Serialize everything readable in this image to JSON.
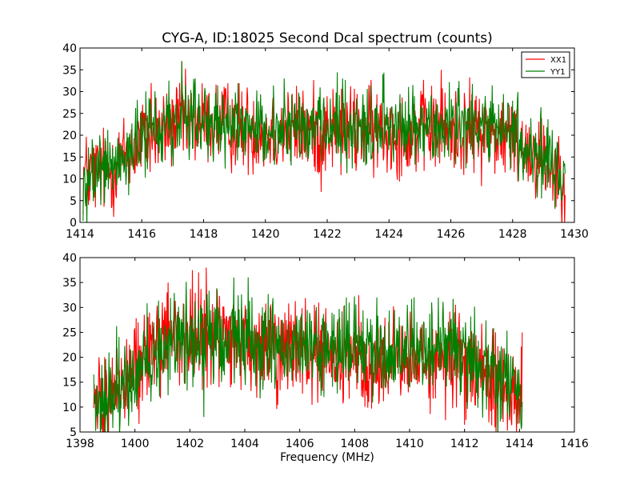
{
  "chart_data": [
    {
      "type": "line",
      "title": "CYG-A, ID:18025 Second Dcal spectrum (counts)",
      "xlabel": "",
      "ylabel": "",
      "xlim": [
        1414,
        1430
      ],
      "ylim": [
        0,
        40
      ],
      "xticks": [
        "1414",
        "1416",
        "1418",
        "1420",
        "1422",
        "1424",
        "1426",
        "1428",
        "1430"
      ],
      "yticks": [
        "0",
        "5",
        "10",
        "15",
        "20",
        "25",
        "30",
        "35",
        "40"
      ],
      "grid": false,
      "legend": {
        "placement": "top-right",
        "entries": [
          "XX1",
          "YY1"
        ]
      },
      "series": [
        {
          "name": "XX1",
          "color": "#ff0000",
          "x_start": 1414.1,
          "x_end": 1429.7,
          "envelope": [
            [
              1414.1,
              11
            ],
            [
              1415.0,
              12
            ],
            [
              1416.0,
              19
            ],
            [
              1417.0,
              22
            ],
            [
              1418.0,
              23
            ],
            [
              1419.0,
              22
            ],
            [
              1420.0,
              21
            ],
            [
              1421.0,
              21
            ],
            [
              1422.0,
              21
            ],
            [
              1423.0,
              21
            ],
            [
              1424.0,
              21
            ],
            [
              1425.0,
              21
            ],
            [
              1426.0,
              21
            ],
            [
              1427.0,
              21
            ],
            [
              1428.0,
              19
            ],
            [
              1429.0,
              15
            ],
            [
              1429.7,
              11
            ]
          ],
          "noise": 5,
          "peaks": [
            [
              1417.3,
              37
            ],
            [
              1425.7,
              35
            ],
            [
              1421.8,
              7
            ],
            [
              1414.3,
              5
            ],
            [
              1429.3,
              5
            ],
            [
              1416.3,
              32
            ]
          ]
        },
        {
          "name": "YY1",
          "color": "#008000",
          "x_start": 1414.1,
          "x_end": 1429.7,
          "envelope": [
            [
              1414.1,
              11
            ],
            [
              1415.0,
              13
            ],
            [
              1416.0,
              19
            ],
            [
              1417.0,
              23
            ],
            [
              1418.0,
              24
            ],
            [
              1419.0,
              23
            ],
            [
              1420.0,
              22
            ],
            [
              1421.0,
              22
            ],
            [
              1422.0,
              22
            ],
            [
              1423.0,
              22
            ],
            [
              1424.0,
              22
            ],
            [
              1425.0,
              22
            ],
            [
              1426.0,
              23
            ],
            [
              1427.0,
              22
            ],
            [
              1428.0,
              19
            ],
            [
              1429.0,
              15
            ],
            [
              1429.7,
              11
            ]
          ],
          "noise": 4.5,
          "peaks": [
            [
              1417.3,
              37
            ],
            [
              1420.6,
              33
            ],
            [
              1422.5,
              33
            ],
            [
              1423.8,
              34
            ],
            [
              1414.2,
              9
            ]
          ]
        }
      ]
    },
    {
      "type": "line",
      "title": "",
      "xlabel": "Frequency (MHz)",
      "ylabel": "",
      "xlim": [
        1398,
        1416
      ],
      "ylim": [
        5,
        40
      ],
      "xticks": [
        "1398",
        "1400",
        "1402",
        "1404",
        "1406",
        "1408",
        "1410",
        "1412",
        "1414",
        "1416"
      ],
      "yticks": [
        "5",
        "10",
        "15",
        "20",
        "25",
        "30",
        "35",
        "40"
      ],
      "grid": false,
      "series": [
        {
          "name": "XX1",
          "color": "#ff0000",
          "x_start": 1398.5,
          "x_end": 1414.1,
          "envelope": [
            [
              1398.5,
              11
            ],
            [
              1399.5,
              14
            ],
            [
              1400.5,
              20
            ],
            [
              1401.5,
              24
            ],
            [
              1402.5,
              24
            ],
            [
              1403.5,
              23
            ],
            [
              1404.5,
              22
            ],
            [
              1405.5,
              21
            ],
            [
              1406.5,
              20
            ],
            [
              1407.5,
              20
            ],
            [
              1408.5,
              19
            ],
            [
              1409.5,
              19
            ],
            [
              1410.5,
              19
            ],
            [
              1411.5,
              19
            ],
            [
              1412.5,
              17
            ],
            [
              1413.5,
              13
            ],
            [
              1414.1,
              11
            ]
          ],
          "noise": 5,
          "peaks": [
            [
              1402.1,
              37.5
            ],
            [
              1402.6,
              38
            ],
            [
              1401.2,
              35
            ],
            [
              1413.4,
              7
            ],
            [
              1414.05,
              7
            ]
          ]
        },
        {
          "name": "YY1",
          "color": "#008000",
          "x_start": 1398.5,
          "x_end": 1414.1,
          "envelope": [
            [
              1398.5,
              11
            ],
            [
              1399.5,
              14
            ],
            [
              1400.5,
              20
            ],
            [
              1401.5,
              24
            ],
            [
              1402.5,
              25
            ],
            [
              1403.5,
              24
            ],
            [
              1404.5,
              23
            ],
            [
              1405.5,
              22
            ],
            [
              1406.5,
              22
            ],
            [
              1407.5,
              22
            ],
            [
              1408.5,
              21
            ],
            [
              1409.5,
              21
            ],
            [
              1410.5,
              22
            ],
            [
              1411.5,
              22
            ],
            [
              1412.5,
              19
            ],
            [
              1413.5,
              14
            ],
            [
              1414.1,
              12
            ]
          ],
          "noise": 4.5,
          "peaks": [
            [
              1402.5,
              8
            ],
            [
              1403.6,
              36
            ],
            [
              1407.7,
              32
            ],
            [
              1408.8,
              32
            ],
            [
              1410.8,
              31
            ]
          ]
        }
      ]
    }
  ]
}
